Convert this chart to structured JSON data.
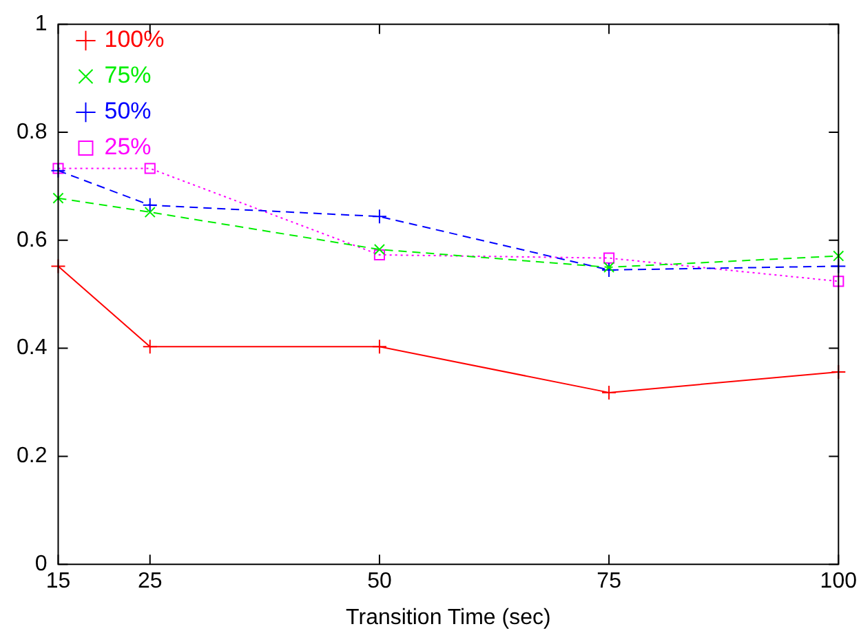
{
  "chart_data": {
    "type": "line",
    "xlabel": "Transition Time (sec)",
    "x": [
      15,
      25,
      50,
      75,
      100
    ],
    "xlim": [
      15,
      100
    ],
    "xticks": [
      15,
      25,
      50,
      75,
      100
    ],
    "ylim": [
      0,
      1
    ],
    "yticks": [
      0,
      0.2,
      0.4,
      0.6,
      0.8,
      1
    ],
    "grid": false,
    "legend": "top left",
    "series": [
      {
        "name": "100%",
        "color": "#ff0000",
        "marker": "cross",
        "line_style": "solid",
        "values": [
          0.552,
          0.403,
          0.403,
          0.318,
          0.356
        ]
      },
      {
        "name": "75%",
        "color": "#00ee00",
        "marker": "x",
        "line_style": "dashed",
        "values": [
          0.678,
          0.652,
          0.583,
          0.55,
          0.571
        ]
      },
      {
        "name": "50%",
        "color": "#0000ff",
        "marker": "cross",
        "line_style": "dashed",
        "values": [
          0.729,
          0.665,
          0.644,
          0.545,
          0.552
        ]
      },
      {
        "name": "25%",
        "color": "#ff00ff",
        "marker": "square",
        "line_style": "dotted",
        "values": [
          0.733,
          0.733,
          0.573,
          0.567,
          0.524
        ]
      }
    ]
  }
}
